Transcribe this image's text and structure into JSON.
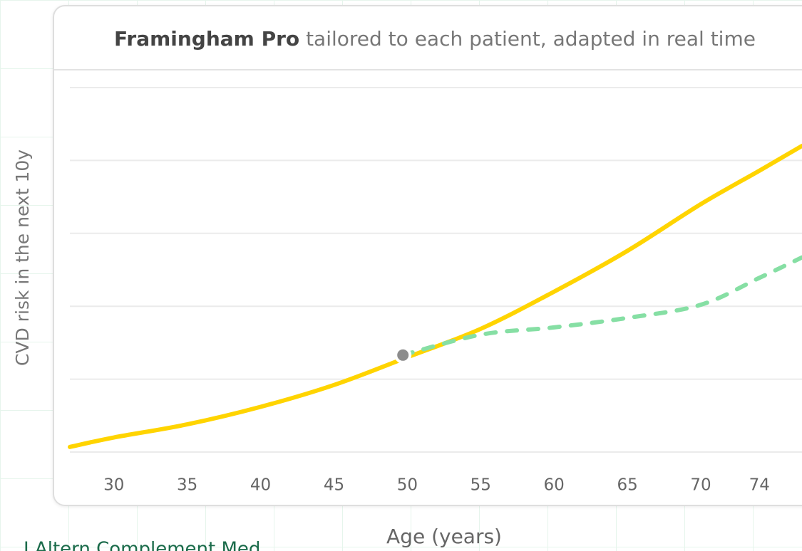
{
  "chart_data": {
    "type": "line",
    "title_bold": "Framingham Pro",
    "title_rest": "tailored to each patient, adapted in real time",
    "y_label": "CVD risk in the next 10y",
    "x_label": "Age (years)",
    "citation": "J Altern Complement Med",
    "xlim": [
      27,
      76.9
    ],
    "ylim": [
      0,
      5
    ],
    "xticks": [
      30,
      35,
      40,
      45,
      50,
      55,
      60,
      65,
      70,
      74
    ],
    "yticks": [
      0,
      1,
      2,
      3,
      4,
      5
    ],
    "grid": true,
    "series": [
      {
        "color": "#ffd400",
        "dashed": false,
        "x": [
          27,
          30,
          35,
          40,
          45,
          50,
          55,
          60,
          65,
          70,
          74,
          76.9
        ],
        "values": [
          0.07,
          0.2,
          0.38,
          0.62,
          0.92,
          1.3,
          1.69,
          2.2,
          2.76,
          3.4,
          3.86,
          4.2
        ]
      },
      {
        "color": "#86dfa4",
        "dashed": true,
        "x": [
          49.7,
          55,
          60,
          65,
          70,
          74,
          76.9
        ],
        "values": [
          1.33,
          1.61,
          1.71,
          1.84,
          2.02,
          2.39,
          2.67
        ]
      }
    ],
    "marker": {
      "x": 49.7,
      "value": 1.33,
      "color": "#8c8c8c"
    }
  }
}
